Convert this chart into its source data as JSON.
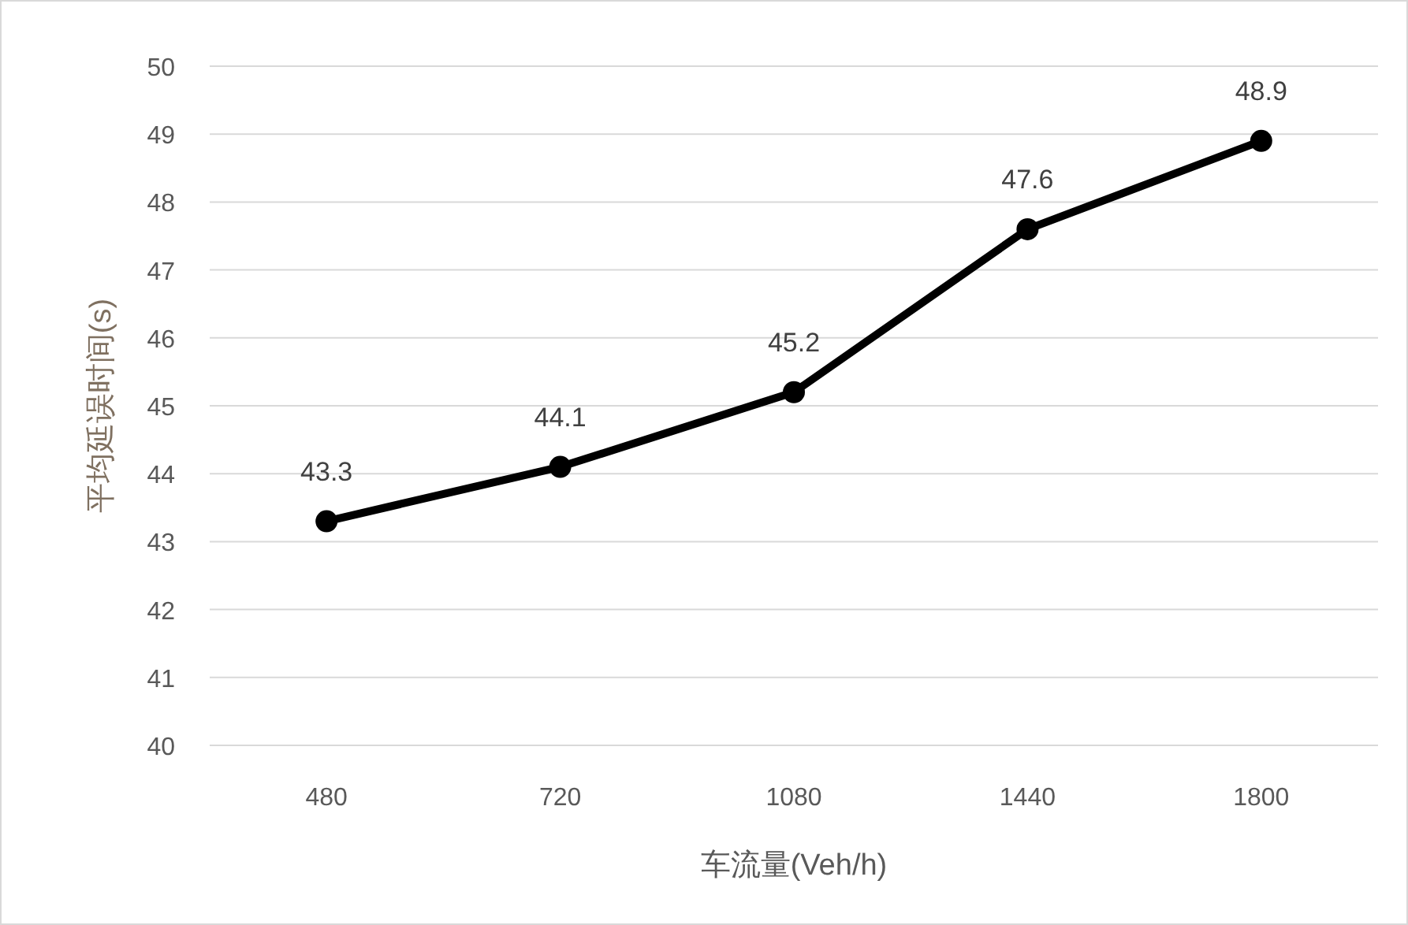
{
  "chart_data": {
    "type": "line",
    "xlabel": "车流量(Veh/h)",
    "ylabel": "平均延误时间(s)",
    "categories": [
      "480",
      "720",
      "1080",
      "1440",
      "1800"
    ],
    "series": [
      {
        "color": "#000000",
        "values": [
          43.3,
          44.1,
          45.2,
          47.6,
          48.9
        ]
      }
    ],
    "ylim": [
      40,
      50
    ],
    "yticks": [
      40,
      41,
      42,
      43,
      44,
      45,
      46,
      47,
      48,
      49,
      50
    ],
    "grid": "y",
    "marker": "circle",
    "line_style": "solid",
    "data_labels": true
  }
}
